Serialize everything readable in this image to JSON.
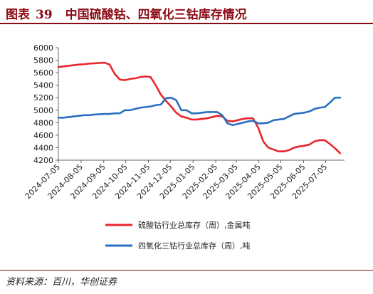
{
  "header": {
    "figure_label": "图表",
    "figure_number": "39",
    "title": "中国硫酸钴、四氧化三钴库存情况"
  },
  "footer": {
    "source": "资料来源：百川，华创证券"
  },
  "colors": {
    "brand": "#8b0a14",
    "series_red": "#e8262c",
    "series_blue": "#2a6fc0"
  },
  "chart_data": {
    "type": "line",
    "xlabel": "",
    "ylabel": "",
    "ylim": [
      4200,
      6000
    ],
    "yticks": [
      4200,
      4400,
      4600,
      4800,
      5000,
      5200,
      5400,
      5600,
      5800,
      6000
    ],
    "xlim": [
      "2024-07-05",
      "2025-07-31"
    ],
    "xticks": [
      "2024-07-05",
      "2024-08-05",
      "2024-09-05",
      "2024-10-05",
      "2024-11-05",
      "2024-12-05",
      "2025-01-05",
      "2025-02-05",
      "2025-03-05",
      "2025-04-05",
      "2025-05-05",
      "2025-06-05",
      "2025-07-05"
    ],
    "grid": false,
    "legend_position": "bottom",
    "series": [
      {
        "name": "硫酸钴行业总库存（周）,金属吨",
        "color": "#e8262c",
        "points": [
          [
            "2024-07-05",
            5690
          ],
          [
            "2024-07-12",
            5700
          ],
          [
            "2024-07-19",
            5710
          ],
          [
            "2024-07-26",
            5720
          ],
          [
            "2024-08-02",
            5730
          ],
          [
            "2024-08-09",
            5735
          ],
          [
            "2024-08-16",
            5745
          ],
          [
            "2024-08-23",
            5750
          ],
          [
            "2024-08-30",
            5755
          ],
          [
            "2024-09-06",
            5760
          ],
          [
            "2024-09-13",
            5730
          ],
          [
            "2024-09-20",
            5580
          ],
          [
            "2024-09-27",
            5490
          ],
          [
            "2024-10-04",
            5480
          ],
          [
            "2024-10-11",
            5500
          ],
          [
            "2024-10-18",
            5510
          ],
          [
            "2024-10-25",
            5530
          ],
          [
            "2024-11-01",
            5540
          ],
          [
            "2024-11-08",
            5530
          ],
          [
            "2024-11-15",
            5400
          ],
          [
            "2024-11-22",
            5250
          ],
          [
            "2024-11-29",
            5150
          ],
          [
            "2024-12-06",
            5060
          ],
          [
            "2024-12-13",
            4960
          ],
          [
            "2024-12-20",
            4900
          ],
          [
            "2024-12-27",
            4880
          ],
          [
            "2025-01-03",
            4850
          ],
          [
            "2025-01-10",
            4850
          ],
          [
            "2025-01-17",
            4860
          ],
          [
            "2025-01-24",
            4870
          ],
          [
            "2025-01-31",
            4890
          ],
          [
            "2025-02-07",
            4910
          ],
          [
            "2025-02-14",
            4900
          ],
          [
            "2025-02-21",
            4830
          ],
          [
            "2025-02-28",
            4820
          ],
          [
            "2025-03-07",
            4840
          ],
          [
            "2025-03-14",
            4860
          ],
          [
            "2025-03-21",
            4870
          ],
          [
            "2025-03-28",
            4870
          ],
          [
            "2025-04-04",
            4720
          ],
          [
            "2025-04-11",
            4500
          ],
          [
            "2025-04-18",
            4400
          ],
          [
            "2025-04-25",
            4370
          ],
          [
            "2025-05-02",
            4340
          ],
          [
            "2025-05-09",
            4340
          ],
          [
            "2025-05-16",
            4360
          ],
          [
            "2025-05-23",
            4400
          ],
          [
            "2025-05-30",
            4420
          ],
          [
            "2025-06-06",
            4430
          ],
          [
            "2025-06-13",
            4450
          ],
          [
            "2025-06-20",
            4500
          ],
          [
            "2025-06-27",
            4520
          ],
          [
            "2025-07-04",
            4520
          ],
          [
            "2025-07-11",
            4460
          ],
          [
            "2025-07-18",
            4390
          ],
          [
            "2025-07-25",
            4310
          ]
        ]
      },
      {
        "name": "四氧化三钴行业总库存（周）,吨",
        "color": "#2a6fc0",
        "points": [
          [
            "2024-07-05",
            4880
          ],
          [
            "2024-07-12",
            4880
          ],
          [
            "2024-07-19",
            4890
          ],
          [
            "2024-07-26",
            4900
          ],
          [
            "2024-08-02",
            4910
          ],
          [
            "2024-08-09",
            4920
          ],
          [
            "2024-08-16",
            4920
          ],
          [
            "2024-08-23",
            4930
          ],
          [
            "2024-08-30",
            4935
          ],
          [
            "2024-09-06",
            4940
          ],
          [
            "2024-09-13",
            4940
          ],
          [
            "2024-09-20",
            4950
          ],
          [
            "2024-09-27",
            4950
          ],
          [
            "2024-10-04",
            5000
          ],
          [
            "2024-10-11",
            5000
          ],
          [
            "2024-10-18",
            5020
          ],
          [
            "2024-10-25",
            5040
          ],
          [
            "2024-11-01",
            5050
          ],
          [
            "2024-11-08",
            5060
          ],
          [
            "2024-11-15",
            5080
          ],
          [
            "2024-11-22",
            5090
          ],
          [
            "2024-11-29",
            5190
          ],
          [
            "2024-12-06",
            5200
          ],
          [
            "2024-12-13",
            5160
          ],
          [
            "2024-12-20",
            5000
          ],
          [
            "2024-12-27",
            5000
          ],
          [
            "2025-01-03",
            4950
          ],
          [
            "2025-01-10",
            4950
          ],
          [
            "2025-01-17",
            4960
          ],
          [
            "2025-01-24",
            4970
          ],
          [
            "2025-01-31",
            4970
          ],
          [
            "2025-02-07",
            4970
          ],
          [
            "2025-02-14",
            4920
          ],
          [
            "2025-02-21",
            4790
          ],
          [
            "2025-02-28",
            4760
          ],
          [
            "2025-03-07",
            4780
          ],
          [
            "2025-03-14",
            4800
          ],
          [
            "2025-03-21",
            4820
          ],
          [
            "2025-03-28",
            4830
          ],
          [
            "2025-04-04",
            4790
          ],
          [
            "2025-04-11",
            4790
          ],
          [
            "2025-04-18",
            4800
          ],
          [
            "2025-04-25",
            4840
          ],
          [
            "2025-05-02",
            4850
          ],
          [
            "2025-05-09",
            4860
          ],
          [
            "2025-05-16",
            4900
          ],
          [
            "2025-05-23",
            4940
          ],
          [
            "2025-05-30",
            4950
          ],
          [
            "2025-06-06",
            4960
          ],
          [
            "2025-06-13",
            4980
          ],
          [
            "2025-06-20",
            5020
          ],
          [
            "2025-06-27",
            5040
          ],
          [
            "2025-07-04",
            5050
          ],
          [
            "2025-07-11",
            5120
          ],
          [
            "2025-07-18",
            5200
          ],
          [
            "2025-07-25",
            5200
          ]
        ]
      }
    ]
  }
}
